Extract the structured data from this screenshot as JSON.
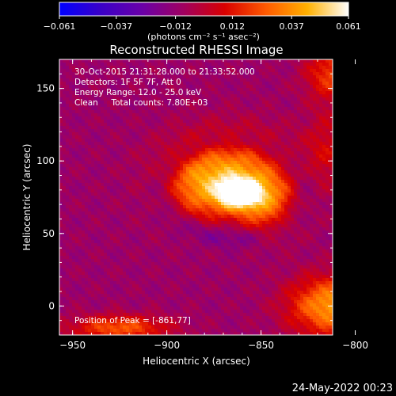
{
  "chart_data": {
    "type": "heatmap",
    "title": "Reconstructed RHESSI Image",
    "xlabel": "Heliocentric X (arcsec)",
    "ylabel": "Heliocentric Y (arcsec)",
    "xlim": [
      -957,
      -812
    ],
    "ylim": [
      -20,
      170
    ],
    "xticks": [
      -950,
      -900,
      -850,
      -800
    ],
    "xtick_labels": [
      "−950",
      "−900",
      "−850",
      "−800"
    ],
    "yticks": [
      0,
      50,
      100,
      150
    ],
    "ytick_labels": [
      "0",
      "50",
      "100",
      "150"
    ],
    "colorbar": {
      "range": [
        -0.061,
        0.061
      ],
      "ticks": [
        -0.061,
        -0.037,
        -0.012,
        0.012,
        0.037,
        0.061
      ],
      "tick_labels": [
        "−0.061",
        "−0.037",
        "−0.012",
        "0.012",
        "0.037",
        "0.061"
      ],
      "units": "(photons cm⁻² s⁻¹ asec⁻²)",
      "colors": [
        "#0000ff",
        "#3a00c8",
        "#6a00a8",
        "#a00060",
        "#d80000",
        "#ff5a00",
        "#ffb000",
        "#ffffff"
      ]
    },
    "annotations": [
      "30-Oct-2015 21:31:28.000 to 21:33:52.000",
      "Detectors: 1F 5F 7F, Att 0",
      "Energy Range: 12.0 - 25.0 keV",
      "Clean     Total counts: 7.80E+03"
    ],
    "peak_label": "Position of Peak = [-861,77]",
    "peak": [
      -861,
      77
    ],
    "source_peak_value": 0.061,
    "background_value": -0.01
  },
  "footer": {
    "date": "24-May-2022 00:23"
  }
}
